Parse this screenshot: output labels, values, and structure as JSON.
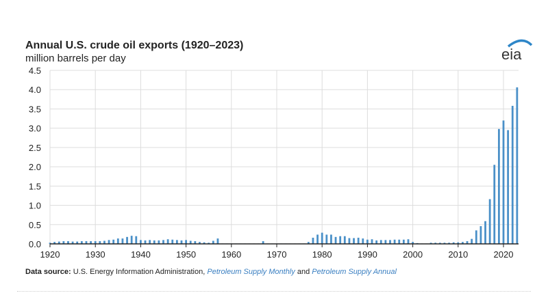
{
  "header": {
    "title": "Annual U.S. crude oil exports (1920–2023)",
    "subtitle": "million barrels per day",
    "logo_text": "eia"
  },
  "source": {
    "label": "Data source:",
    "text": "U.S. Energy Information Administration,",
    "link1": "Petroleum Supply Monthly",
    "and": "and",
    "link2": "Petroleum Supply Annual"
  },
  "colors": {
    "bar": "#4a90c8",
    "grid": "#dddddd",
    "link": "#3a7fc1"
  },
  "chart_data": {
    "type": "bar",
    "title": "Annual U.S. crude oil exports (1920–2023)",
    "ylabel": "million barrels per day",
    "xlabel": "",
    "ylim": [
      0,
      4.5
    ],
    "xlim": [
      1920,
      2023
    ],
    "yticks": [
      "0.0",
      "0.5",
      "1.0",
      "1.5",
      "2.0",
      "2.5",
      "3.0",
      "3.5",
      "4.0",
      "4.5"
    ],
    "xticks": [
      "1920",
      "1930",
      "1940",
      "1950",
      "1960",
      "1970",
      "1980",
      "1990",
      "2000",
      "2010",
      "2020"
    ],
    "grid": true,
    "start_year": 1920,
    "values": [
      0.03,
      0.05,
      0.06,
      0.07,
      0.07,
      0.06,
      0.06,
      0.07,
      0.07,
      0.07,
      0.07,
      0.07,
      0.08,
      0.1,
      0.11,
      0.14,
      0.14,
      0.18,
      0.21,
      0.2,
      0.1,
      0.09,
      0.1,
      0.09,
      0.09,
      0.1,
      0.12,
      0.11,
      0.1,
      0.09,
      0.1,
      0.08,
      0.07,
      0.05,
      0.04,
      0.03,
      0.08,
      0.14,
      0.01,
      0.01,
      0.01,
      0.01,
      0.01,
      0.01,
      0.01,
      0.01,
      0.01,
      0.07,
      0.01,
      0.01,
      0.01,
      0.01,
      0.01,
      0.01,
      0.01,
      0.01,
      0.01,
      0.05,
      0.16,
      0.24,
      0.29,
      0.24,
      0.24,
      0.18,
      0.2,
      0.2,
      0.15,
      0.15,
      0.16,
      0.14,
      0.11,
      0.12,
      0.09,
      0.1,
      0.1,
      0.1,
      0.11,
      0.11,
      0.11,
      0.12,
      0.05,
      0.02,
      0.01,
      0.01,
      0.03,
      0.03,
      0.03,
      0.03,
      0.03,
      0.04,
      0.04,
      0.05,
      0.07,
      0.13,
      0.35,
      0.46,
      0.59,
      1.16,
      2.05,
      2.98,
      3.2,
      2.95,
      3.58,
      4.06
    ]
  }
}
